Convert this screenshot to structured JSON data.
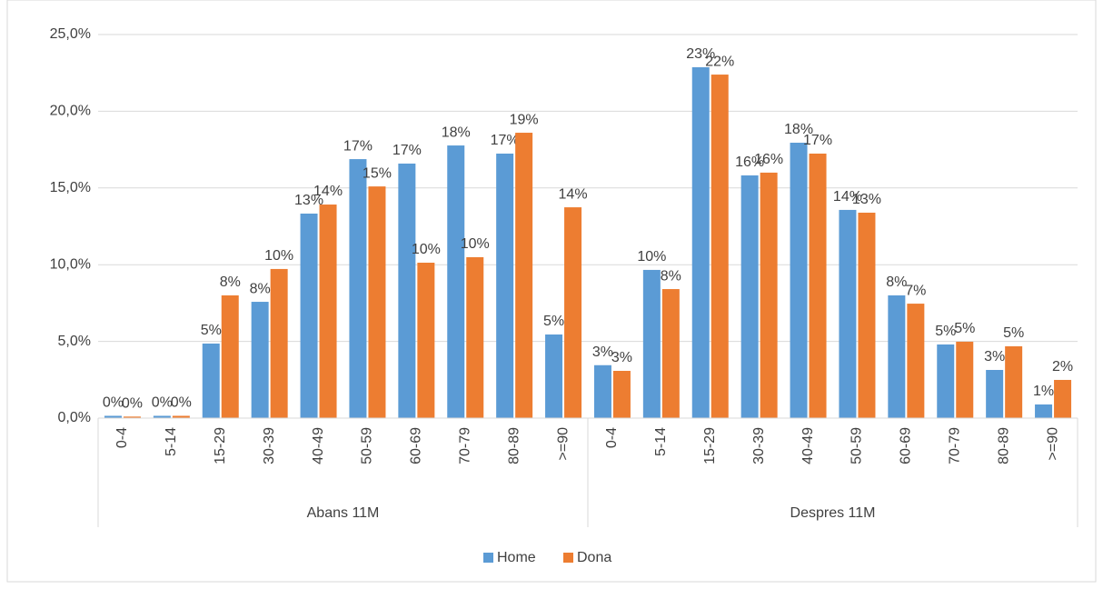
{
  "chart_data": {
    "type": "bar",
    "groups": [
      {
        "name": "Abans 11M",
        "categories": [
          "0-4",
          "5-14",
          "15-29",
          "30-39",
          "40-49",
          "50-59",
          "60-69",
          "70-79",
          "80-89",
          ">=90"
        ]
      },
      {
        "name": "Despres 11M",
        "categories": [
          "0-4",
          "5-14",
          "15-29",
          "30-39",
          "40-49",
          "50-59",
          "60-69",
          "70-79",
          "80-89",
          ">=90"
        ]
      }
    ],
    "series": [
      {
        "name": "Home",
        "color": "#5b9bd5",
        "values": [
          0.15,
          0.15,
          4.86,
          7.58,
          13.33,
          16.88,
          16.59,
          17.77,
          17.24,
          5.45,
          3.45,
          9.66,
          22.87,
          15.82,
          17.95,
          13.57,
          8.0,
          4.8,
          3.14,
          0.89
        ],
        "value_labels": [
          "0%",
          "0%",
          "5%",
          "8%",
          "13%",
          "17%",
          "17%",
          "18%",
          "17%",
          "5%",
          "3%",
          "10%",
          "23%",
          "16%",
          "18%",
          "14%",
          "8%",
          "5%",
          "3%",
          "1%"
        ]
      },
      {
        "name": "Dona",
        "color": "#ed7d31",
        "values": [
          0.1,
          0.15,
          8.0,
          9.72,
          13.92,
          15.1,
          10.13,
          10.49,
          18.6,
          13.74,
          3.08,
          8.41,
          22.39,
          16.0,
          17.24,
          13.39,
          7.46,
          4.98,
          4.68,
          2.49
        ],
        "value_labels": [
          "0%",
          "0%",
          "8%",
          "10%",
          "14%",
          "15%",
          "10%",
          "10%",
          "19%",
          "14%",
          "3%",
          "8%",
          "22%",
          "16%",
          "17%",
          "13%",
          "7%",
          "5%",
          "5%",
          "2%"
        ]
      }
    ],
    "ylim": [
      0,
      25
    ],
    "yticks": [
      {
        "value": 0,
        "label": "0,0%"
      },
      {
        "value": 5,
        "label": "5,0%"
      },
      {
        "value": 10,
        "label": "10,0%"
      },
      {
        "value": 15,
        "label": "15,0%"
      },
      {
        "value": 20,
        "label": "20,0%"
      },
      {
        "value": 25,
        "label": "25,0%"
      }
    ],
    "grid": true,
    "legend": "bottom"
  }
}
